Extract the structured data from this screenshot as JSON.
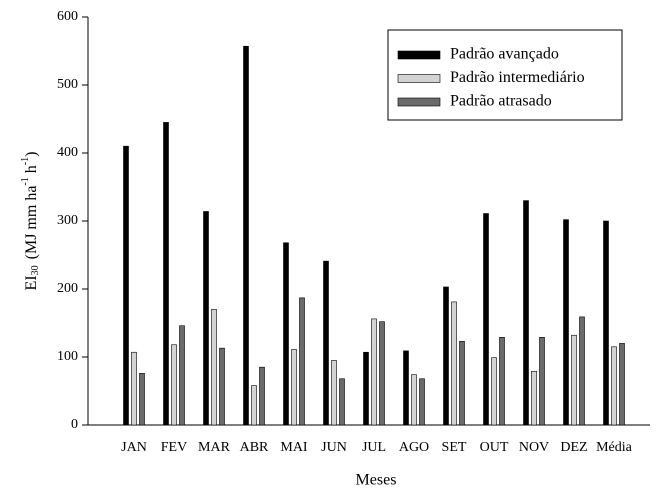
{
  "chart_data": {
    "type": "bar",
    "x_label": "Meses",
    "y_label_parts": [
      "EI",
      "30",
      "(MJ mm ha",
      "-1",
      " h",
      "-1",
      ")"
    ],
    "categories": [
      "JAN",
      "FEV",
      "MAR",
      "ABR",
      "MAI",
      "JUN",
      "JUL",
      "AGO",
      "SET",
      "OUT",
      "NOV",
      "DEZ",
      "Média"
    ],
    "series": [
      {
        "name": "Padrão avançado",
        "color": "#000000",
        "values": [
          410,
          445,
          314,
          557,
          268,
          241,
          107,
          109,
          203,
          311,
          330,
          302,
          300
        ]
      },
      {
        "name": "Padrão intermediário",
        "color": "#d3d3d3",
        "values": [
          107,
          118,
          170,
          58,
          111,
          95,
          156,
          74,
          181,
          99,
          79,
          132,
          115
        ]
      },
      {
        "name": "Padrão atrasado",
        "color": "#6b6b6b",
        "values": [
          76,
          146,
          113,
          85,
          187,
          68,
          152,
          68,
          123,
          129,
          129,
          159,
          120
        ]
      }
    ],
    "ylim": [
      0,
      600
    ],
    "yticks": [
      0,
      100,
      200,
      300,
      400,
      500,
      600
    ],
    "legend": "upper right"
  }
}
